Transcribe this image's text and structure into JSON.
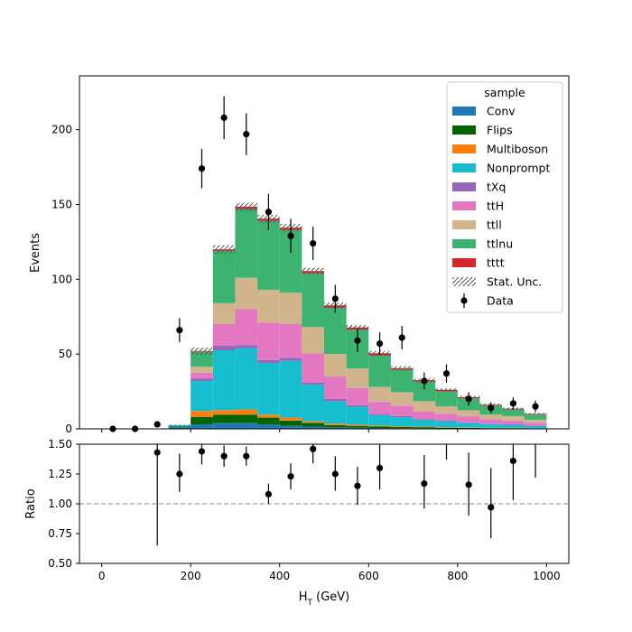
{
  "chart_data": {
    "type": "stacked-histogram-with-ratio",
    "xlabel_main": "H",
    "xlabel_sub": "T",
    "xlabel_unit": " (GeV)",
    "ylabel_top": "Events",
    "ylabel_bottom": "Ratio",
    "xlim": [
      -50,
      1050
    ],
    "ylim_top": [
      0,
      236
    ],
    "ylim_bottom": [
      0.5,
      1.5
    ],
    "ratio_reference": 1.0,
    "xticks": [
      0,
      200,
      400,
      600,
      800,
      1000
    ],
    "yticks_top": [
      0,
      50,
      100,
      150,
      200
    ],
    "yticks_bottom": [
      0.5,
      0.75,
      1.0,
      1.25,
      1.5
    ],
    "ytick_labels_bottom": [
      "0.50",
      "0.75",
      "1.00",
      "1.25",
      "1.50"
    ],
    "bin_edges": [
      0,
      50,
      100,
      150,
      200,
      250,
      300,
      350,
      400,
      450,
      500,
      550,
      600,
      650,
      700,
      750,
      800,
      850,
      900,
      950,
      1000
    ],
    "legend": {
      "title": "sample",
      "position": "top-right",
      "unc_label": "Stat. Unc.",
      "data_label": "Data"
    },
    "series": [
      {
        "name": "Conv",
        "color": "#1f77b4",
        "values": [
          0,
          0,
          0,
          1,
          3,
          4,
          4,
          3,
          2,
          1.5,
          1,
          0.8,
          0.6,
          0.5,
          0.4,
          0.3,
          0.3,
          0.2,
          0.2,
          0.1
        ]
      },
      {
        "name": "Flips",
        "color": "#006400",
        "values": [
          0,
          0,
          0,
          0.5,
          5,
          5.5,
          5.5,
          4.5,
          3.5,
          2.5,
          1.5,
          1.2,
          1,
          0.8,
          0.7,
          0.5,
          0.4,
          0.3,
          0.3,
          0.2
        ]
      },
      {
        "name": "Multiboson",
        "color": "#ff7f0e",
        "values": [
          0,
          0,
          0,
          0,
          4,
          3,
          3.5,
          2,
          2,
          1,
          1,
          0.8,
          0.6,
          0.5,
          0.4,
          0.3,
          0.3,
          0.2,
          0.2,
          0.1
        ]
      },
      {
        "name": "Nonprompt",
        "color": "#17becf",
        "values": [
          0,
          0,
          0,
          1,
          20,
          40,
          41,
          34.5,
          38,
          24.5,
          15,
          12,
          7,
          6,
          4.5,
          4,
          3,
          2.5,
          2,
          1.5
        ]
      },
      {
        "name": "tXq",
        "color": "#9467bd",
        "values": [
          0,
          0,
          0,
          0,
          1.5,
          3,
          2,
          2,
          2,
          1.5,
          1.5,
          1,
          0.8,
          0.7,
          0.5,
          0.5,
          0.4,
          0.3,
          0.3,
          0.2
        ]
      },
      {
        "name": "ttH",
        "color": "#e377c2",
        "values": [
          0,
          0,
          0,
          0,
          4,
          14.5,
          24,
          25,
          22.5,
          19.5,
          15,
          11.5,
          8,
          7,
          5,
          4.5,
          4,
          3,
          2.5,
          2
        ]
      },
      {
        "name": "ttll",
        "color": "#d2b48c",
        "values": [
          0,
          0,
          0,
          0,
          4,
          14,
          21,
          22,
          21,
          17.5,
          15,
          13,
          10,
          9,
          7,
          5,
          4,
          3,
          3,
          2
        ]
      },
      {
        "name": "ttlnu",
        "color": "#3cb371",
        "values": [
          0,
          0,
          0,
          0,
          10,
          35,
          46,
          46,
          42,
          36,
          31,
          26,
          21,
          15,
          13,
          10,
          8,
          6,
          4.5,
          3.5
        ]
      },
      {
        "name": "tttt",
        "color": "#d62728",
        "values": [
          0,
          0,
          0,
          0,
          0.5,
          1,
          1.5,
          1.5,
          1.5,
          1.5,
          1.5,
          1.5,
          1.5,
          1,
          1,
          1,
          0.8,
          0.6,
          0.5,
          0.4
        ]
      }
    ],
    "stat_unc": [
      0,
      0,
      0,
      0.3,
      2.5,
      2.8,
      2.8,
      2.6,
      2.5,
      2.2,
      2.0,
      1.8,
      1.6,
      1.4,
      1.2,
      1.0,
      0.9,
      0.8,
      0.7,
      0.6
    ],
    "data": {
      "x": [
        25,
        75,
        125,
        175,
        225,
        275,
        325,
        375,
        425,
        475,
        525,
        575,
        625,
        675,
        725,
        775,
        825,
        875,
        925,
        975
      ],
      "y": [
        0,
        0,
        3,
        66,
        174,
        208,
        197,
        145,
        129,
        124,
        87,
        59,
        57,
        61,
        32,
        37,
        20,
        14,
        17,
        15
      ],
      "err": [
        0,
        0,
        1.8,
        8,
        13.2,
        14.4,
        14,
        12,
        11.4,
        11.1,
        9.3,
        7.7,
        7.5,
        7.8,
        5.7,
        6.1,
        4.5,
        3.7,
        4.1,
        3.9
      ]
    },
    "ratio": {
      "x": [
        125,
        175,
        225,
        275,
        325,
        375,
        425,
        475,
        525,
        575,
        625,
        675,
        725,
        775,
        825,
        875,
        925,
        975
      ],
      "y": [
        1.43,
        1.25,
        1.44,
        1.4,
        1.4,
        1.08,
        1.23,
        1.46,
        1.25,
        1.15,
        1.3,
        null,
        1.17,
        null,
        1.16,
        0.97,
        1.36,
        null
      ],
      "lo": [
        0.65,
        1.1,
        1.33,
        1.31,
        1.32,
        1.0,
        1.12,
        1.34,
        1.11,
        0.99,
        1.12,
        null,
        0.96,
        1.37,
        0.9,
        0.71,
        1.03,
        1.22
      ],
      "hi": [
        1.5,
        1.42,
        1.5,
        1.49,
        1.48,
        1.17,
        1.34,
        1.5,
        1.4,
        1.31,
        1.5,
        1.5,
        1.41,
        1.5,
        1.43,
        1.3,
        1.5,
        1.5
      ]
    }
  }
}
